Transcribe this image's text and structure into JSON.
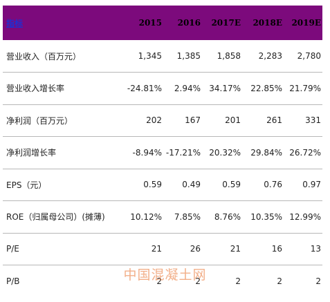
{
  "table": {
    "header": [
      "指标",
      "2015",
      "2016",
      "2017E",
      "2018E",
      "2019E"
    ],
    "rows": [
      [
        "营业收入（百万元）",
        "1,345",
        "1,385",
        "1,858",
        "2,283",
        "2,780"
      ],
      [
        "营业收入增长率",
        "-24.81%",
        "2.94%",
        "34.17%",
        "22.85%",
        "21.79%"
      ],
      [
        "净利润（百万元）",
        "202",
        "167",
        "201",
        "261",
        "331"
      ],
      [
        "净利润增长率",
        "-8.94%",
        "-17.21%",
        "20.32%",
        "29.84%",
        "26.72%"
      ],
      [
        "EPS（元）",
        "0.59",
        "0.49",
        "0.59",
        "0.76",
        "0.97"
      ],
      [
        "ROE（归属母公司）(摊薄)",
        "10.12%",
        "7.85%",
        "8.76%",
        "10.35%",
        "12.99%"
      ],
      [
        "P/E",
        "21",
        "26",
        "21",
        "16",
        "13"
      ],
      [
        "P/B",
        "2",
        "2",
        "2",
        "2",
        "2"
      ]
    ]
  },
  "watermark": "中国混凝土网",
  "colors": {
    "header_bg": "#7c0a7c",
    "header_link": "#1f2fd0",
    "row_border": "#b7b7b7",
    "watermark": "#e86e28"
  }
}
